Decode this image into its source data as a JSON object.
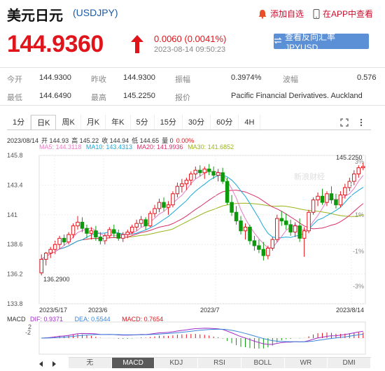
{
  "header": {
    "title": "美元日元",
    "code": "(USDJPY)",
    "add_watchlist": "添加自选",
    "view_in_app": "在APP中查看"
  },
  "quote": {
    "price": "144.9360",
    "change": "0.0060 (0.0041%)",
    "timestamp": "2023-08-14 09:50:23",
    "reverse_button": "查看反向汇率 JPYUSD"
  },
  "stats": {
    "open_label": "今开",
    "open": "144.9300",
    "prev_label": "昨收",
    "prev": "144.9300",
    "amp_label": "振幅",
    "amp": "0.3974%",
    "spread_label": "波幅",
    "spread": "0.576",
    "low_label": "最低",
    "low": "144.6490",
    "high_label": "最高",
    "high": "145.2250",
    "quote_label": "报价",
    "quote": "Pacific Financial Derivatives. Auckland"
  },
  "tabs": [
    "1分",
    "日K",
    "周K",
    "月K",
    "年K",
    "5分",
    "15分",
    "30分",
    "60分",
    "4H"
  ],
  "active_tab": 1,
  "info": {
    "line1": [
      "2023/08/14",
      "开 144.93",
      "高 145.22",
      "收 144.94",
      "低 144.65",
      "量 0",
      "0.00%"
    ],
    "ma5": "MA5: 144.3118",
    "ma10": "MA10: 143.4313",
    "ma20": "MA20: 141.9936",
    "ma30": "MA30: 141.6852"
  },
  "macd_info": {
    "macd_label": "MACD",
    "dif": "DIF: 0.9371",
    "dea": "DEA: 0.5544",
    "macd": "MACD: 0.7654"
  },
  "bottom_tabs": [
    "无",
    "MACD",
    "KDJ",
    "RSI",
    "BOLL",
    "WR",
    "DMI"
  ],
  "bottom_active": 1,
  "colors": {
    "up": "#e0141b",
    "down": "#0c9a0c",
    "ma5": "#e87cc4",
    "ma10": "#19a8d8",
    "ma20": "#d8306a",
    "ma30": "#9ab41a",
    "dif": "#a02cc8",
    "dea": "#3a86d8"
  },
  "chart_data": {
    "type": "candlestick",
    "y_ticks": [
      "145.8",
      "143.4",
      "141",
      "138.6",
      "136.2",
      "133.8"
    ],
    "ylim": [
      133.8,
      145.8
    ],
    "pct_ticks": [
      "3%",
      "1%",
      "-1%",
      "-3%"
    ],
    "x_labels": [
      "2023/5/17",
      "2023/6",
      "2023/7",
      "2023/8/14"
    ],
    "max_label": "145.2250",
    "min_label": "136.2900",
    "macd_y_ticks": [
      "2",
      "-2"
    ],
    "watermark": "新浪财经",
    "ohlc": [
      [
        136.3,
        137.8,
        136.1,
        137.4
      ],
      [
        137.4,
        138.0,
        136.9,
        137.9
      ],
      [
        137.9,
        138.4,
        137.5,
        138.2
      ],
      [
        138.2,
        138.9,
        137.8,
        138.6
      ],
      [
        138.6,
        139.3,
        138.2,
        139.1
      ],
      [
        139.1,
        139.4,
        138.5,
        138.8
      ],
      [
        138.8,
        139.6,
        138.6,
        139.4
      ],
      [
        139.4,
        140.3,
        139.1,
        140.1
      ],
      [
        140.1,
        140.9,
        139.8,
        140.4
      ],
      [
        140.4,
        140.8,
        139.6,
        139.9
      ],
      [
        139.9,
        140.2,
        139.1,
        139.5
      ],
      [
        139.5,
        140.0,
        139.0,
        139.7
      ],
      [
        139.7,
        140.1,
        138.9,
        139.2
      ],
      [
        139.2,
        139.6,
        138.6,
        138.9
      ],
      [
        138.9,
        139.5,
        138.6,
        139.3
      ],
      [
        139.3,
        140.0,
        139.1,
        139.8
      ],
      [
        139.8,
        140.2,
        139.2,
        139.5
      ],
      [
        139.5,
        139.8,
        138.9,
        139.1
      ],
      [
        139.1,
        139.6,
        138.8,
        139.4
      ],
      [
        139.4,
        139.8,
        139.1,
        139.6
      ],
      [
        139.6,
        140.2,
        139.4,
        140.0
      ],
      [
        140.0,
        140.6,
        139.7,
        140.3
      ],
      [
        140.3,
        140.9,
        140.0,
        140.6
      ],
      [
        140.6,
        140.8,
        139.8,
        140.1
      ],
      [
        140.1,
        141.3,
        140.0,
        141.1
      ],
      [
        141.1,
        141.8,
        140.8,
        141.5
      ],
      [
        141.5,
        142.3,
        141.2,
        142.0
      ],
      [
        142.0,
        142.4,
        141.3,
        141.6
      ],
      [
        141.6,
        142.1,
        141.0,
        141.8
      ],
      [
        141.8,
        142.9,
        141.6,
        142.7
      ],
      [
        142.7,
        143.6,
        142.4,
        143.3
      ],
      [
        143.3,
        143.9,
        142.8,
        143.5
      ],
      [
        143.5,
        144.0,
        143.0,
        143.8
      ],
      [
        143.8,
        144.5,
        143.4,
        144.3
      ],
      [
        144.3,
        144.9,
        143.9,
        144.6
      ],
      [
        144.6,
        145.0,
        144.1,
        144.4
      ],
      [
        144.4,
        144.9,
        143.9,
        144.7
      ],
      [
        144.7,
        145.1,
        144.2,
        144.5
      ],
      [
        144.5,
        144.9,
        143.9,
        144.2
      ],
      [
        144.2,
        144.7,
        143.7,
        144.4
      ],
      [
        144.4,
        144.8,
        143.5,
        143.7
      ],
      [
        143.7,
        144.0,
        141.8,
        142.0
      ],
      [
        142.0,
        142.6,
        140.9,
        141.2
      ],
      [
        141.2,
        141.7,
        140.2,
        140.5
      ],
      [
        140.5,
        140.9,
        139.4,
        139.7
      ],
      [
        139.7,
        140.3,
        139.0,
        140.0
      ],
      [
        140.0,
        140.2,
        138.6,
        138.9
      ],
      [
        138.9,
        139.3,
        138.1,
        138.5
      ],
      [
        138.5,
        139.0,
        137.9,
        138.2
      ],
      [
        138.2,
        138.8,
        137.3,
        137.7
      ],
      [
        137.7,
        138.5,
        137.4,
        138.3
      ],
      [
        138.3,
        139.2,
        138.1,
        139.0
      ],
      [
        139.0,
        141.0,
        138.8,
        140.7
      ],
      [
        140.7,
        141.3,
        140.1,
        140.5
      ],
      [
        140.5,
        141.1,
        139.8,
        140.2
      ],
      [
        140.2,
        140.6,
        139.3,
        139.6
      ],
      [
        139.6,
        140.4,
        139.2,
        140.1
      ],
      [
        140.1,
        140.7,
        138.8,
        139.1
      ],
      [
        139.1,
        140.0,
        137.6,
        139.7
      ],
      [
        139.7,
        141.4,
        139.5,
        141.2
      ],
      [
        141.2,
        142.4,
        141.0,
        142.2
      ],
      [
        142.2,
        142.8,
        141.7,
        142.5
      ],
      [
        142.5,
        143.1,
        141.8,
        142.0
      ],
      [
        142.0,
        142.9,
        141.7,
        142.7
      ],
      [
        142.7,
        143.3,
        141.9,
        142.2
      ],
      [
        142.2,
        142.7,
        141.5,
        141.8
      ],
      [
        141.8,
        142.9,
        141.6,
        142.6
      ],
      [
        142.6,
        143.5,
        142.3,
        143.2
      ],
      [
        143.2,
        144.0,
        142.9,
        143.7
      ],
      [
        143.7,
        144.6,
        143.4,
        144.3
      ],
      [
        144.3,
        145.0,
        144.0,
        144.8
      ],
      [
        144.8,
        145.2,
        144.6,
        144.9
      ]
    ]
  }
}
